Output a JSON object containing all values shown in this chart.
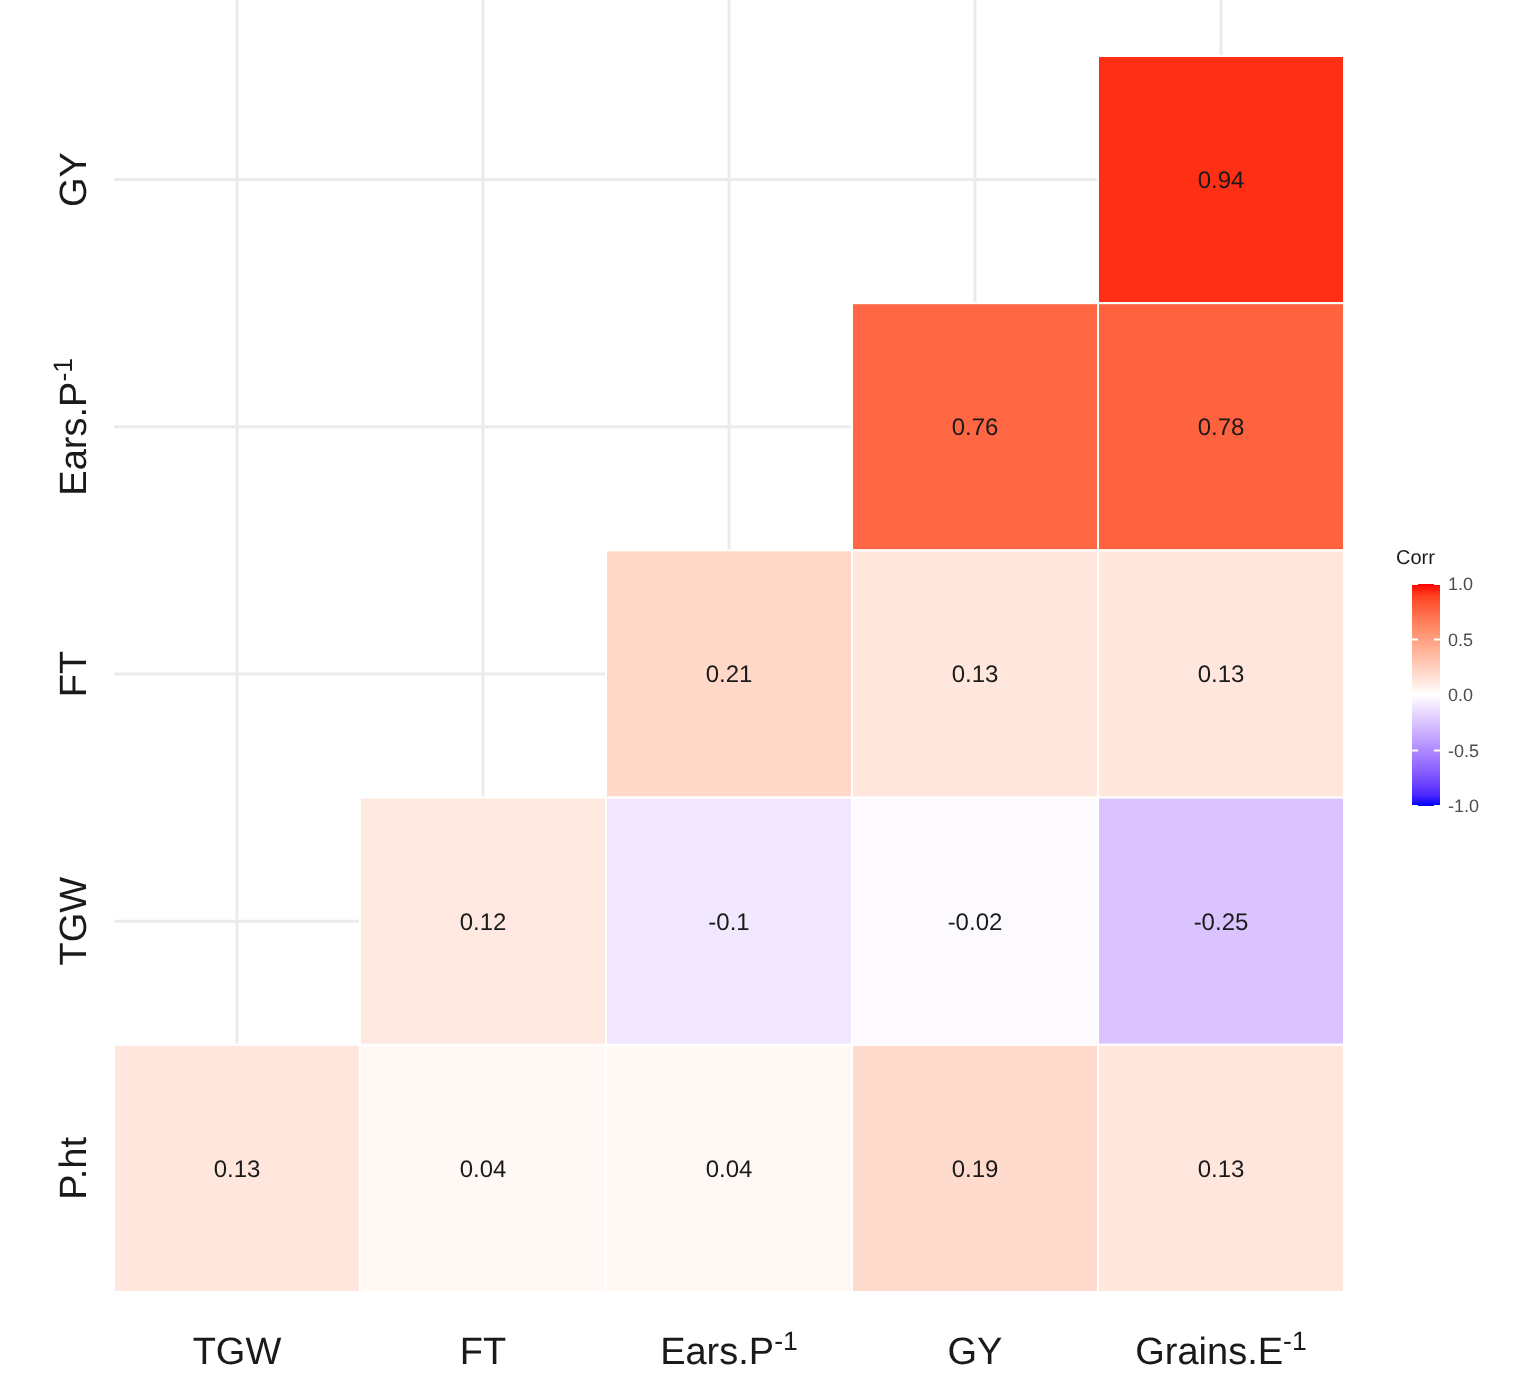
{
  "chart_data": {
    "type": "heatmap",
    "categories": [
      "TGW",
      "FT",
      "Ears.P$^{-1}$",
      "GY",
      "Grains.E$^{-1}$"
    ],
    "y_categories": [
      "GY",
      "Ears.P$^{-1}$",
      "FT",
      "TGW",
      "P.ht"
    ],
    "cells": [
      [
        null,
        null,
        null,
        null,
        0.94
      ],
      [
        null,
        null,
        null,
        0.76,
        0.78
      ],
      [
        null,
        null,
        0.21,
        0.13,
        0.13
      ],
      [
        null,
        0.12,
        -0.1,
        -0.02,
        -0.25
      ],
      [
        0.13,
        0.04,
        0.04,
        0.19,
        0.13
      ]
    ],
    "clabel": "Corr",
    "clim": [
      -1,
      1
    ],
    "cticks": [
      {
        "value": -1,
        "label": "-1.0"
      },
      {
        "value": -0.5,
        "label": "-0.5"
      },
      {
        "value": 0,
        "label": "0.0"
      },
      {
        "value": 0.5,
        "label": "0.5"
      },
      {
        "value": 1,
        "label": "1.0"
      }
    ],
    "data_labels": true,
    "grid": true
  }
}
